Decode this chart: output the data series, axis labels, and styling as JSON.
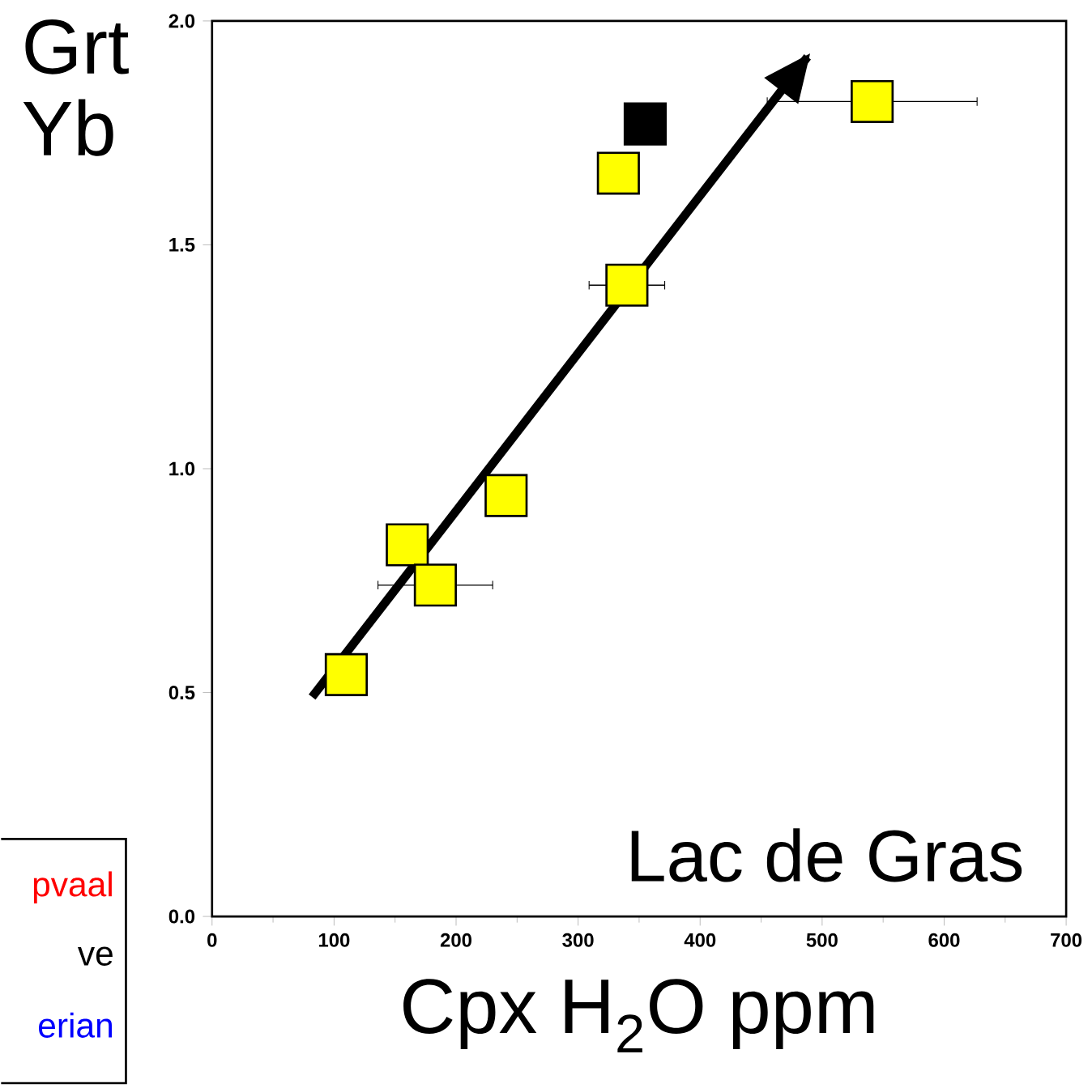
{
  "chart_data": {
    "type": "scatter",
    "xlabel": "Cpx H$_{2}$O ppm",
    "ylabel": "Grt Yb",
    "xlim": [
      0,
      700
    ],
    "xticks": [
      0,
      100,
      200,
      300,
      400,
      500,
      600,
      700
    ],
    "ylim": [
      0,
      2
    ],
    "yticks": [
      {
        "value": 0,
        "label": "0.0"
      },
      {
        "value": 0.5,
        "label": "0.5"
      },
      {
        "value": 1,
        "label": "1.0"
      },
      {
        "value": 1.5,
        "label": "1.5"
      },
      {
        "value": 2,
        "label": "2.0"
      }
    ],
    "marker": "square",
    "grid": false,
    "series": [
      {
        "color": "#ffff00",
        "x": [
          110,
          160,
          183,
          241,
          333,
          340
        ],
        "values": [
          0.54,
          0.83,
          0.74,
          0.94,
          1.66,
          1.41
        ],
        "xerrors": [
          null,
          null,
          47,
          null,
          null,
          31
        ]
      },
      {
        "color": "#000000",
        "x": [
          355
        ],
        "values": [
          1.77
        ]
      },
      {
        "color": "#ffff00",
        "x": [
          541
        ],
        "values": [
          1.82
        ],
        "xerrors": [
          86
        ]
      },
      {
        "type": "line",
        "color": "#000000",
        "marker": "none",
        "x": [
          82,
          488
        ],
        "values": [
          0.49,
          1.92
        ]
      }
    ],
    "annotations": [
      "Lac de Gras",
      "pvaal",
      "ve",
      "erian"
    ]
  }
}
